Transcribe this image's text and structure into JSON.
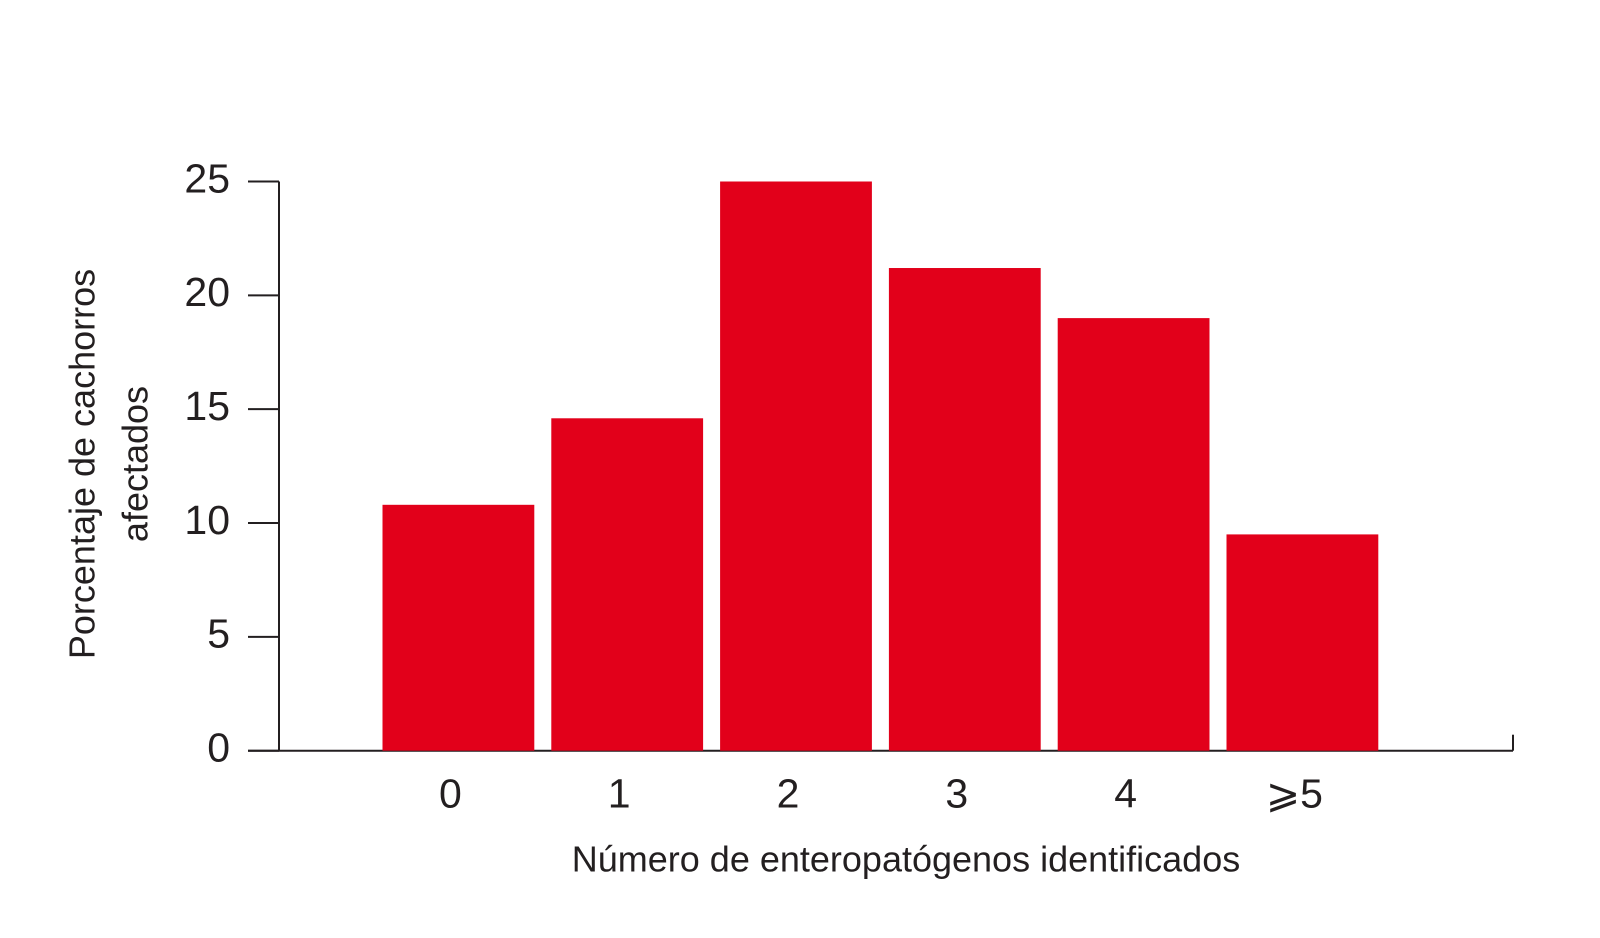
{
  "chart_data": {
    "type": "bar",
    "y_label": [
      "Porcentaje de cachorros",
      "afectados"
    ],
    "x_label": "Número de enteropatógenos identificados",
    "categories": [
      "0",
      "1",
      "2",
      "3",
      "4",
      "⩾5"
    ],
    "values": [
      10.8,
      14.6,
      25,
      21.2,
      19.0,
      9.5
    ],
    "color": "#e2001a",
    "ylim": [
      0,
      25
    ],
    "yticks": [
      0,
      5,
      10,
      15,
      20,
      25
    ],
    "grid": false
  }
}
